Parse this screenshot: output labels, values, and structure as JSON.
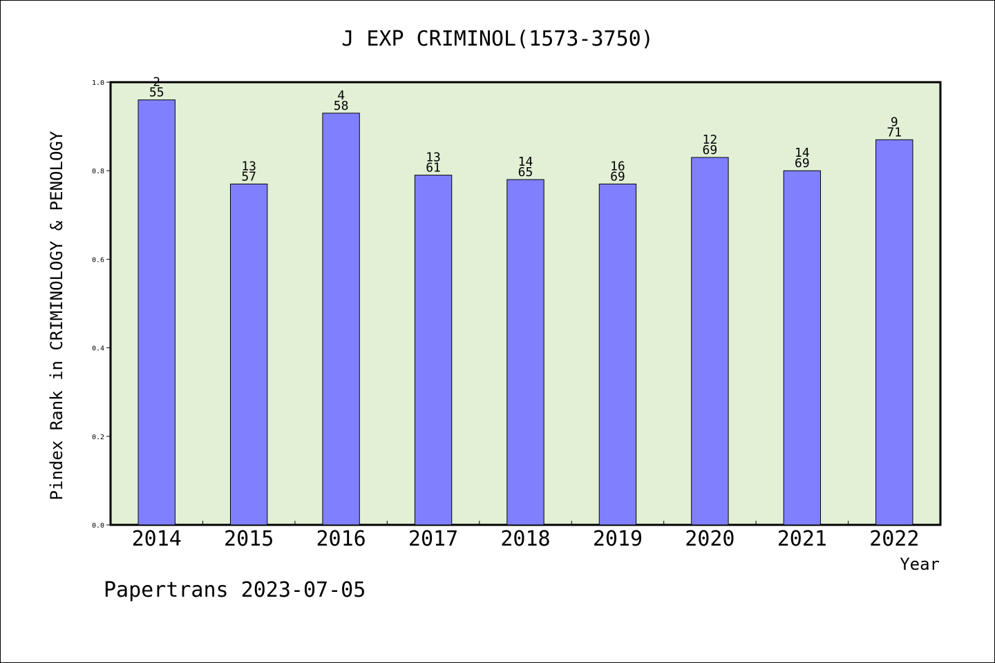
{
  "chart_data": {
    "type": "bar",
    "title": "J EXP CRIMINOL(1573-3750)",
    "xlabel": "Year",
    "ylabel": "Pindex Rank in CRIMINOLOGY & PENOLOGY",
    "ylim": [
      0.0,
      1.0
    ],
    "yticks": [
      "0.0",
      "0.2",
      "0.4",
      "0.6",
      "0.8",
      "1.0"
    ],
    "categories": [
      "2014",
      "2015",
      "2016",
      "2017",
      "2018",
      "2019",
      "2020",
      "2021",
      "2022"
    ],
    "values": [
      0.96,
      0.77,
      0.93,
      0.79,
      0.78,
      0.77,
      0.83,
      0.8,
      0.87
    ],
    "rank_labels": [
      "2",
      "13",
      "4",
      "13",
      "14",
      "16",
      "12",
      "14",
      "9"
    ],
    "total_labels": [
      "55",
      "57",
      "58",
      "61",
      "65",
      "69",
      "69",
      "69",
      "71"
    ],
    "grid": false,
    "bar_color": "#8080ff",
    "plot_background": "#e2f0d6"
  },
  "footer": "Papertrans 2023-07-05"
}
